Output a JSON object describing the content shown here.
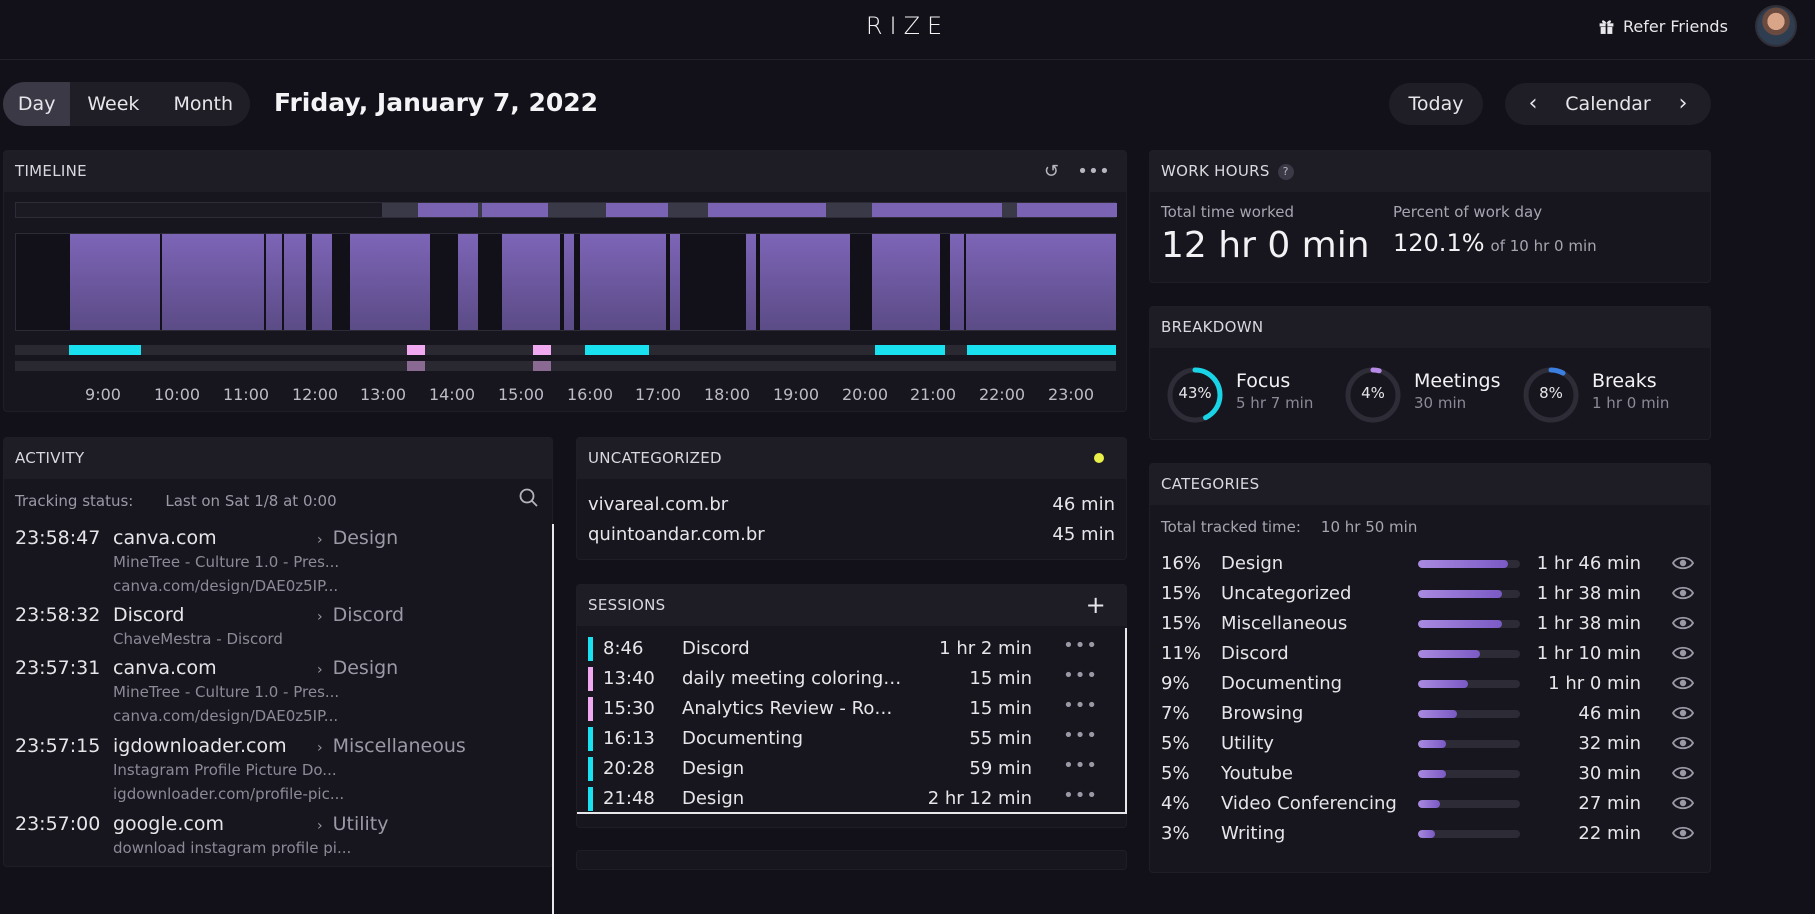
{
  "header": {
    "brand": "RIZE",
    "refer_label": "Refer Friends"
  },
  "view_tabs": [
    {
      "label": "Day",
      "active": true
    },
    {
      "label": "Week"
    },
    {
      "label": "Month"
    }
  ],
  "date_title": "Friday, January 7, 2022",
  "today_label": "Today",
  "calendar_label": "Calendar",
  "timeline": {
    "title": "TIMELINE",
    "hours": [
      "9:00",
      "10:00",
      "11:00",
      "12:00",
      "13:00",
      "14:00",
      "15:00",
      "16:00",
      "17:00",
      "18:00",
      "19:00",
      "20:00",
      "21:00",
      "22:00",
      "23:00"
    ]
  },
  "activity": {
    "title": "ACTIVITY",
    "tracking_label": "Tracking status:",
    "tracking_value": "Last on Sat 1/8 at 0:00",
    "items": [
      {
        "time": "23:58:47",
        "app": "canva.com",
        "line1": "MineTree - Culture 1.0 - Pres...",
        "line2": "canva.com/design/DAE0z5IP...",
        "category": "Design"
      },
      {
        "time": "23:58:32",
        "app": "Discord",
        "line1": "ChaveMestra - Discord",
        "line2": "",
        "category": "Discord"
      },
      {
        "time": "23:57:31",
        "app": "canva.com",
        "line1": "MineTree - Culture 1.0 - Pres...",
        "line2": "canva.com/design/DAE0z5IP...",
        "category": "Design"
      },
      {
        "time": "23:57:15",
        "app": "igdownloader.com",
        "line1": "Instagram Profile Picture Do...",
        "line2": "igdownloader.com/profile-pic...",
        "category": "Miscellaneous"
      },
      {
        "time": "23:57:00",
        "app": "google.com",
        "line1": "download instagram profile pi...",
        "line2": "",
        "category": "Utility"
      }
    ]
  },
  "uncategorized": {
    "title": "UNCATEGORIZED",
    "dot_color": "#eaf04a",
    "rows": [
      {
        "name": "vivareal.com.br",
        "duration": "46 min"
      },
      {
        "name": "quintoandar.com.br",
        "duration": "45 min"
      }
    ]
  },
  "sessions": {
    "title": "SESSIONS",
    "rows": [
      {
        "time": "8:46",
        "name": "Discord",
        "duration": "1 hr 2 min",
        "color": "#19e1f0"
      },
      {
        "time": "13:40",
        "name": "daily meeting coloring a...",
        "duration": "15 min",
        "color": "#f0a8f0"
      },
      {
        "time": "15:30",
        "name": "Analytics Review - Rodr...",
        "duration": "15 min",
        "color": "#f0a8f0"
      },
      {
        "time": "16:13",
        "name": "Documenting",
        "duration": "55 min",
        "color": "#19e1f0"
      },
      {
        "time": "20:28",
        "name": "Design",
        "duration": "59 min",
        "color": "#19e1f0"
      },
      {
        "time": "21:48",
        "name": "Design",
        "duration": "2 hr 12 min",
        "color": "#19e1f0"
      }
    ]
  },
  "work_hours": {
    "title": "WORK HOURS",
    "help": "?",
    "total_label": "Total time worked",
    "total_value": "12 hr 0 min",
    "percent_label": "Percent of work day",
    "percent_value": "120.1%",
    "percent_of": "of 10 hr 0 min"
  },
  "breakdown": {
    "title": "BREAKDOWN",
    "items": [
      {
        "name": "Focus",
        "pct": "43%",
        "value": 43,
        "duration": "5 hr 7 min",
        "color": "#19d3e6"
      },
      {
        "name": "Meetings",
        "pct": "4%",
        "value": 4,
        "duration": "30 min",
        "color": "#b88ae8"
      },
      {
        "name": "Breaks",
        "pct": "8%",
        "value": 8,
        "duration": "1 hr 0 min",
        "color": "#3b7fe0"
      }
    ]
  },
  "categories": {
    "title": "CATEGORIES",
    "total_label": "Total tracked time:",
    "total_value": "10 hr 50 min",
    "rows": [
      {
        "pct": "16%",
        "name": "Design",
        "value": 16,
        "duration": "1 hr 46 min"
      },
      {
        "pct": "15%",
        "name": "Uncategorized",
        "value": 15,
        "duration": "1 hr 38 min"
      },
      {
        "pct": "15%",
        "name": "Miscellaneous",
        "value": 15,
        "duration": "1 hr 38 min"
      },
      {
        "pct": "11%",
        "name": "Discord",
        "value": 11,
        "duration": "1 hr 10 min"
      },
      {
        "pct": "9%",
        "name": "Documenting",
        "value": 9,
        "duration": "1 hr 0 min"
      },
      {
        "pct": "7%",
        "name": "Browsing",
        "value": 7,
        "duration": "46 min"
      },
      {
        "pct": "5%",
        "name": "Utility",
        "value": 5,
        "duration": "32 min"
      },
      {
        "pct": "5%",
        "name": "Youtube",
        "value": 5,
        "duration": "30 min"
      },
      {
        "pct": "4%",
        "name": "Video Conferencing",
        "value": 4,
        "duration": "27 min"
      },
      {
        "pct": "3%",
        "name": "Writing",
        "value": 3,
        "duration": "22 min"
      }
    ]
  },
  "colors": {
    "accent_cyan": "#19e1f0",
    "accent_pink": "#f0a8f0",
    "purple": "#7c63b4"
  }
}
